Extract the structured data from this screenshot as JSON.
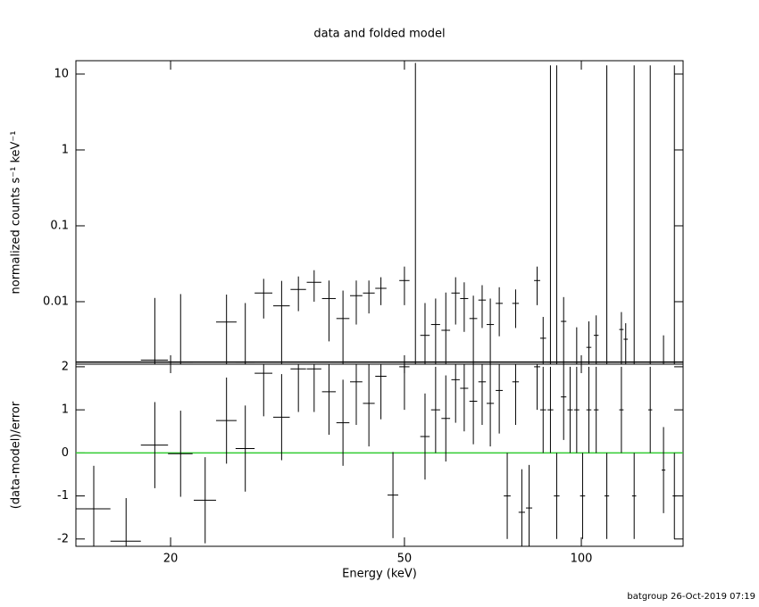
{
  "chart_data": [
    {
      "type": "errorbar",
      "title": "data and folded model",
      "ylabel": "normalized counts s⁻¹ keV⁻¹",
      "xlog": true,
      "ylog": true,
      "xlim": [
        13.8,
        149
      ],
      "ylim": [
        0.0015,
        15
      ],
      "yticks": [
        0.01,
        0.1,
        1,
        10
      ],
      "x": [
        18.8,
        20.8,
        24.9,
        26.8,
        28.8,
        30.9,
        33.0,
        35.1,
        37.2,
        39.3,
        41.4,
        43.5,
        45.6,
        50.0,
        52.2,
        54.2,
        56.5,
        58.8,
        61.1,
        63.2,
        65.5,
        67.8,
        70.0,
        72.5,
        77.3,
        84.1,
        86.1,
        88.6,
        90.8,
        93.3,
        98.2,
        103,
        106,
        110.5,
        117,
        119,
        123,
        131,
        138,
        144
      ],
      "values": [
        0.0017,
        0.0016,
        0.0054,
        0.0016,
        0.013,
        0.0088,
        0.0145,
        0.018,
        0.011,
        0.006,
        0.012,
        0.013,
        0.015,
        0.019,
        0.0016,
        0.0036,
        0.005,
        0.0042,
        0.013,
        0.011,
        0.006,
        0.0105,
        0.005,
        0.0095,
        0.0095,
        0.019,
        0.0033,
        0.0016,
        0.0016,
        0.0055,
        0.0016,
        0.0025,
        0.0036,
        0.0016,
        0.0043,
        0.0032,
        0.0016,
        0.0016,
        0.0016,
        0.0016
      ],
      "yerr": [
        0.0095,
        0.011,
        0.007,
        0.008,
        0.007,
        0.01,
        0.007,
        0.008,
        0.008,
        0.008,
        0.007,
        0.006,
        0.006,
        0.01,
        14,
        0.006,
        0.006,
        0.009,
        0.008,
        0.007,
        0.006,
        0.006,
        0.006,
        0.006,
        0.005,
        0.01,
        0.003,
        13,
        13,
        0.006,
        0.003,
        0.003,
        0.003,
        13,
        0.003,
        0.002,
        13,
        13,
        0.002,
        13
      ],
      "xerr": 1,
      "line": {
        "x": [
          13.8,
          149
        ],
        "values": [
          0.0016,
          0.0016
        ],
        "color": "#000000"
      },
      "color": "#000000"
    },
    {
      "type": "errorbar",
      "ylabel": "(data-model)/error",
      "xlabel": "Energy (keV)",
      "xlog": true,
      "ylog": false,
      "xlim": [
        13.8,
        149
      ],
      "ylim": [
        -2.17,
        2.06
      ],
      "xticks": [
        20,
        50,
        100
      ],
      "yticks": [
        -2,
        -1,
        0,
        1,
        2
      ],
      "x": [
        14.8,
        16.8,
        18.8,
        20.8,
        22.9,
        24.9,
        26.8,
        28.8,
        30.9,
        33.0,
        35.1,
        37.2,
        39.3,
        41.4,
        43.5,
        45.6,
        47.8,
        50.0,
        54.2,
        56.5,
        58.8,
        61.1,
        63.2,
        65.5,
        67.8,
        70.0,
        72.5,
        74.8,
        77.3,
        79.2,
        81.5,
        84.1,
        86.1,
        88.6,
        90.8,
        93.3,
        95.7,
        98.2,
        100.5,
        103,
        106,
        110.5,
        117,
        123,
        131,
        138,
        144
      ],
      "values": [
        -1.3,
        -2.05,
        0.18,
        -0.02,
        -1.1,
        0.75,
        0.1,
        1.85,
        0.83,
        1.95,
        1.95,
        1.42,
        0.7,
        1.65,
        1.15,
        1.78,
        -0.98,
        2.0,
        0.38,
        1.0,
        0.8,
        1.7,
        1.5,
        1.2,
        1.65,
        1.15,
        1.45,
        -1.0,
        1.65,
        -1.38,
        -1.28,
        2.0,
        1.0,
        1.0,
        -1.0,
        1.3,
        1.0,
        1.0,
        -1.0,
        1.0,
        1.0,
        -1.0,
        1.0,
        -1.0,
        1.0,
        -0.4,
        -1.0
      ],
      "yerr": 1,
      "xerr": 1,
      "line": {
        "x": [
          13.8,
          149
        ],
        "values": [
          0,
          0
        ],
        "color": "#33cc33"
      },
      "color": "#000000"
    }
  ],
  "footer": "batgroup 26-Oct-2019 07:19"
}
